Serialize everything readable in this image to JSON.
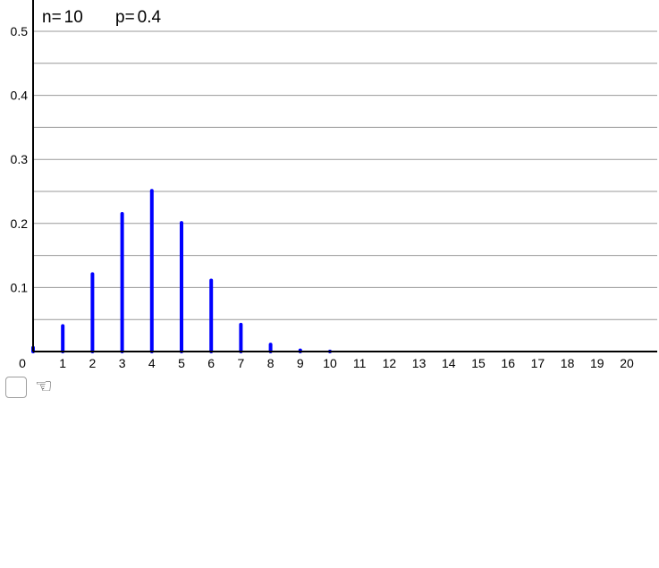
{
  "params": {
    "n_label": "n=",
    "n_value": "10",
    "p_label": "p=",
    "p_value": "0.4"
  },
  "controls": {
    "checkbox_checked": false,
    "pointer_icon": "hand-pointer-icon"
  },
  "chart_data": {
    "type": "bar",
    "style": "stem",
    "bar_color": "#0000ff",
    "grid_color": "#999999",
    "x": [
      0,
      1,
      2,
      3,
      4,
      5,
      6,
      7,
      8,
      9,
      10
    ],
    "values": [
      0.006,
      0.04,
      0.121,
      0.215,
      0.251,
      0.201,
      0.111,
      0.042,
      0.011,
      0.002,
      0.0001
    ],
    "xlim": [
      0,
      21
    ],
    "ylim": [
      0,
      0.55
    ],
    "x_ticks": [
      "0",
      "1",
      "2",
      "3",
      "4",
      "5",
      "6",
      "7",
      "8",
      "9",
      "10",
      "11",
      "12",
      "13",
      "14",
      "15",
      "16",
      "17",
      "18",
      "19",
      "20"
    ],
    "y_ticks": [
      "0.1",
      "0.2",
      "0.3",
      "0.4",
      "0.5"
    ],
    "y_tick_values": [
      0.1,
      0.2,
      0.3,
      0.4,
      0.5
    ],
    "y_grid_values": [
      0.05,
      0.1,
      0.15,
      0.2,
      0.25,
      0.3,
      0.35,
      0.4,
      0.45,
      0.5
    ],
    "origin_label": "0",
    "grid": true
  }
}
